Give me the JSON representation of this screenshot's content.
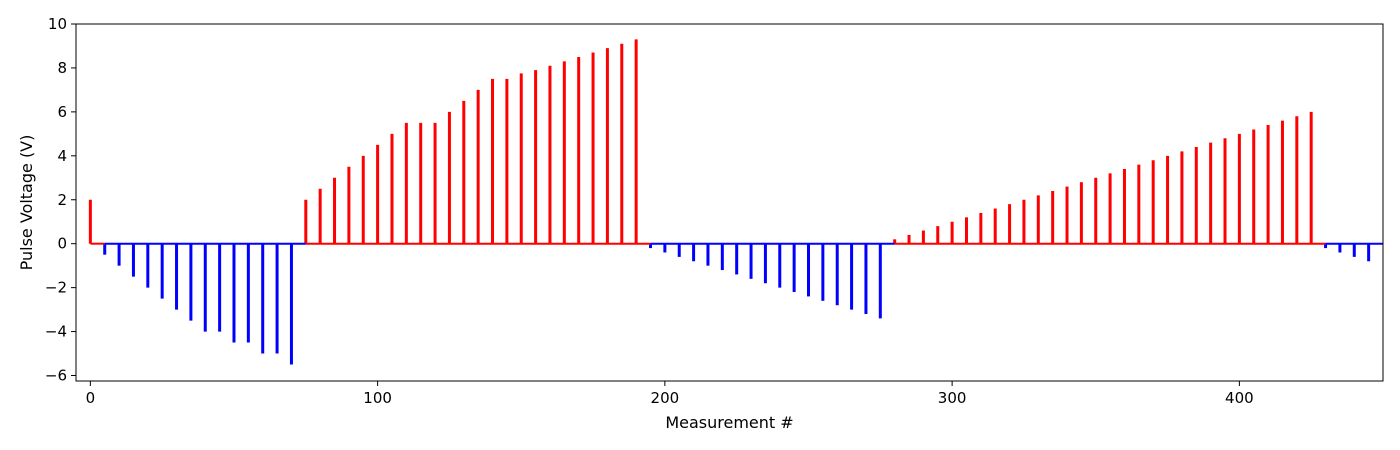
{
  "chart_data": {
    "type": "bar",
    "title": "",
    "xlabel": "Measurement #",
    "ylabel": "Pulse Voltage (V)",
    "xlim": [
      -5,
      450
    ],
    "ylim": [
      -6.25,
      10
    ],
    "x_ticks": [
      0,
      100,
      200,
      300,
      400
    ],
    "y_ticks": [
      -6,
      -4,
      -2,
      0,
      2,
      4,
      6,
      8,
      10
    ],
    "grid": false,
    "colors": {
      "positive": "#ff0000",
      "negative": "#0000ff",
      "axes": "#000000"
    },
    "baseline_segments": [
      {
        "x_start": 0,
        "x_end": 5,
        "color": "#ff0000"
      },
      {
        "x_start": 5,
        "x_end": 75,
        "color": "#0000ff"
      },
      {
        "x_start": 75,
        "x_end": 195,
        "color": "#ff0000"
      },
      {
        "x_start": 195,
        "x_end": 280,
        "color": "#0000ff"
      },
      {
        "x_start": 280,
        "x_end": 430,
        "color": "#ff0000"
      },
      {
        "x_start": 430,
        "x_end": 450,
        "color": "#0000ff"
      }
    ],
    "x": [
      0,
      5,
      10,
      15,
      20,
      25,
      30,
      35,
      40,
      45,
      50,
      55,
      60,
      65,
      70,
      75,
      80,
      85,
      90,
      95,
      100,
      105,
      110,
      115,
      120,
      125,
      130,
      135,
      140,
      145,
      150,
      155,
      160,
      165,
      170,
      175,
      180,
      185,
      190,
      195,
      200,
      205,
      210,
      215,
      220,
      225,
      230,
      235,
      240,
      245,
      250,
      255,
      260,
      265,
      270,
      275,
      280,
      285,
      290,
      295,
      300,
      305,
      310,
      315,
      320,
      325,
      330,
      335,
      340,
      345,
      350,
      355,
      360,
      365,
      370,
      375,
      380,
      385,
      390,
      395,
      400,
      405,
      410,
      415,
      420,
      425,
      430,
      435,
      440,
      445
    ],
    "values": [
      2,
      -0.5,
      -1,
      -1.5,
      -2,
      -2.5,
      -3,
      -3.5,
      -4,
      -4,
      -4.5,
      -4.5,
      -5,
      -5,
      -5.5,
      2,
      2.5,
      3,
      3.5,
      4,
      4.5,
      5,
      5.5,
      5.5,
      5.5,
      6,
      6.5,
      7,
      7.5,
      7.5,
      7.75,
      7.9,
      8.1,
      8.3,
      8.5,
      8.7,
      8.9,
      9.1,
      9.3,
      -0.2,
      -0.4,
      -0.6,
      -0.8,
      -1,
      -1.2,
      -1.4,
      -1.6,
      -1.8,
      -2,
      -2.2,
      -2.4,
      -2.6,
      -2.8,
      -3,
      -3.2,
      -3.4,
      0.2,
      0.4,
      0.6,
      0.8,
      1,
      1.2,
      1.4,
      1.6,
      1.8,
      2,
      2.2,
      2.4,
      2.6,
      2.8,
      3,
      3.2,
      3.4,
      3.6,
      3.8,
      4,
      4.2,
      4.4,
      4.6,
      4.8,
      5,
      5.2,
      5.4,
      5.6,
      5.8,
      6,
      -0.2,
      -0.4,
      -0.6,
      -0.8
    ]
  }
}
